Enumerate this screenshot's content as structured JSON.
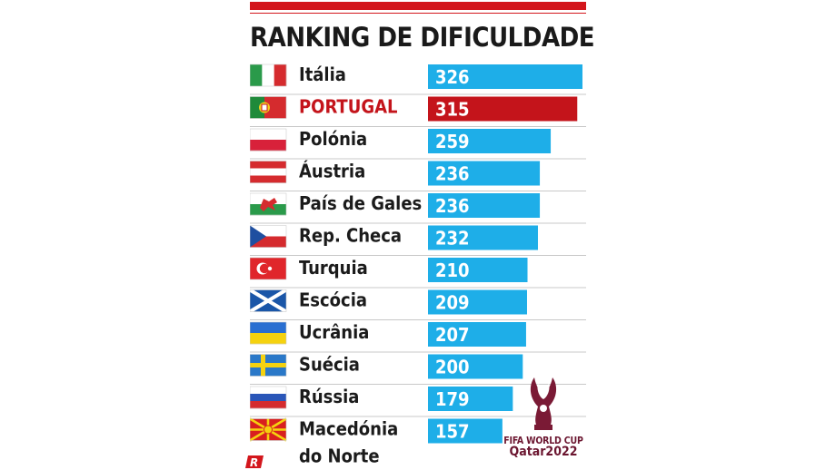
{
  "header": {
    "title": "RANKING DE DIFICULDADE"
  },
  "chart_data": {
    "type": "bar",
    "orientation": "horizontal",
    "title": "RANKING DE DIFICULDADE",
    "categories": [
      "Itália",
      "PORTUGAL",
      "Polónia",
      "Áustria",
      "País de Gales",
      "Rep. Checa",
      "Turquia",
      "Escócia",
      "Ucrânia",
      "Suécia",
      "Rússia",
      "Macedónia do Norte"
    ],
    "values": [
      326,
      315,
      259,
      236,
      236,
      232,
      210,
      209,
      207,
      200,
      179,
      157
    ],
    "highlight": "PORTUGAL",
    "flag_icons": [
      "italy-flag-icon",
      "portugal-flag-icon",
      "poland-flag-icon",
      "austria-flag-icon",
      "wales-flag-icon",
      "czechia-flag-icon",
      "turkey-flag-icon",
      "scotland-flag-icon",
      "ukraine-flag-icon",
      "sweden-flag-icon",
      "russia-flag-icon",
      "north-macedonia-flag-icon"
    ],
    "colors": {
      "bar": "#1eaee8",
      "highlight_bar": "#c4141b",
      "highlight_text": "#c4141b",
      "accent": "#d3161c"
    },
    "grid": false,
    "legend": "none"
  },
  "logo": {
    "line1": "FIFA WORLD CUP",
    "line2": "Qatar2022",
    "icon": "world-cup-trophy-icon"
  },
  "brand": {
    "icon": "record-logo-icon"
  }
}
